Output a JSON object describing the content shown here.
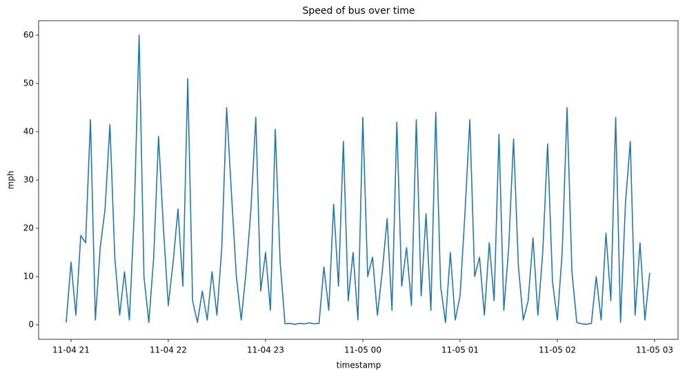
{
  "chart_data": {
    "type": "line",
    "title": "Speed of bus over time",
    "xlabel": "timestamp",
    "ylabel": "mph",
    "x": [
      20.95,
      21.0,
      21.05,
      21.1,
      21.15,
      21.2,
      21.25,
      21.3,
      21.35,
      21.4,
      21.45,
      21.5,
      21.55,
      21.6,
      21.65,
      21.7,
      21.75,
      21.8,
      21.85,
      21.9,
      21.95,
      22.0,
      22.05,
      22.1,
      22.15,
      22.2,
      22.25,
      22.3,
      22.35,
      22.4,
      22.45,
      22.5,
      22.55,
      22.6,
      22.65,
      22.7,
      22.75,
      22.8,
      22.85,
      22.9,
      22.95,
      23.0,
      23.05,
      23.1,
      23.15,
      23.2,
      23.25,
      23.3,
      23.35,
      23.4,
      23.45,
      23.5,
      23.55,
      23.6,
      23.65,
      23.7,
      23.75,
      23.8,
      23.85,
      23.9,
      23.95,
      24.0,
      24.05,
      24.1,
      24.15,
      24.2,
      24.25,
      24.3,
      24.35,
      24.4,
      24.45,
      24.5,
      24.55,
      24.6,
      24.65,
      24.7,
      24.75,
      24.8,
      24.85,
      24.9,
      24.95,
      25.0,
      25.05,
      25.1,
      25.15,
      25.2,
      25.25,
      25.3,
      25.35,
      25.4,
      25.45,
      25.5,
      25.55,
      25.6,
      25.65,
      25.7,
      25.75,
      25.8,
      25.85,
      25.9,
      25.95,
      26.0,
      26.05,
      26.1,
      26.15,
      26.2,
      26.25,
      26.3,
      26.35,
      26.4,
      26.45,
      26.5,
      26.55,
      26.6,
      26.65,
      26.7,
      26.75,
      26.8,
      26.85,
      26.9,
      26.95
    ],
    "series": [
      {
        "name": "speed",
        "color": "#1f77b4",
        "values": [
          0.5,
          13,
          2,
          18.5,
          17,
          42.5,
          1,
          16,
          24,
          41.5,
          14,
          2,
          11,
          1,
          23,
          60,
          10,
          0.5,
          14,
          39,
          20,
          4,
          13,
          24,
          8,
          51,
          5,
          0.5,
          7,
          1,
          11,
          2,
          16,
          45,
          27,
          10,
          1,
          11,
          24,
          43,
          7,
          15,
          3,
          40.5,
          13,
          0.2,
          0.3,
          0.1,
          0.3,
          0.2,
          0.4,
          0.2,
          0.3,
          12,
          3,
          25,
          8,
          38,
          5,
          15,
          1,
          43,
          10,
          14,
          2,
          11,
          22,
          3,
          42,
          8,
          16,
          4,
          42.5,
          6,
          23,
          3,
          44,
          8,
          0.5,
          15,
          1,
          6,
          23,
          42.5,
          10,
          14,
          2,
          17,
          5,
          39.5,
          3,
          16,
          38.5,
          12,
          1,
          5,
          18,
          2,
          15,
          37.5,
          9,
          1,
          15,
          45,
          11,
          0.5,
          0.2,
          0.1,
          0.3,
          10,
          1,
          19,
          5,
          43,
          0.5,
          25,
          38,
          2,
          17,
          1,
          10.8
        ]
      }
    ],
    "xlim": [
      20.667,
      27.241
    ],
    "xticks": [
      {
        "value": 21,
        "label": "11-04 21"
      },
      {
        "value": 22,
        "label": "11-04 22"
      },
      {
        "value": 23,
        "label": "11-04 23"
      },
      {
        "value": 24,
        "label": "11-05 00"
      },
      {
        "value": 25,
        "label": "11-05 01"
      },
      {
        "value": 26,
        "label": "11-05 02"
      },
      {
        "value": 27,
        "label": "11-05 03"
      }
    ],
    "ylim": [
      -3,
      63
    ],
    "yticks": [
      0,
      10,
      20,
      30,
      40,
      50,
      60
    ]
  }
}
